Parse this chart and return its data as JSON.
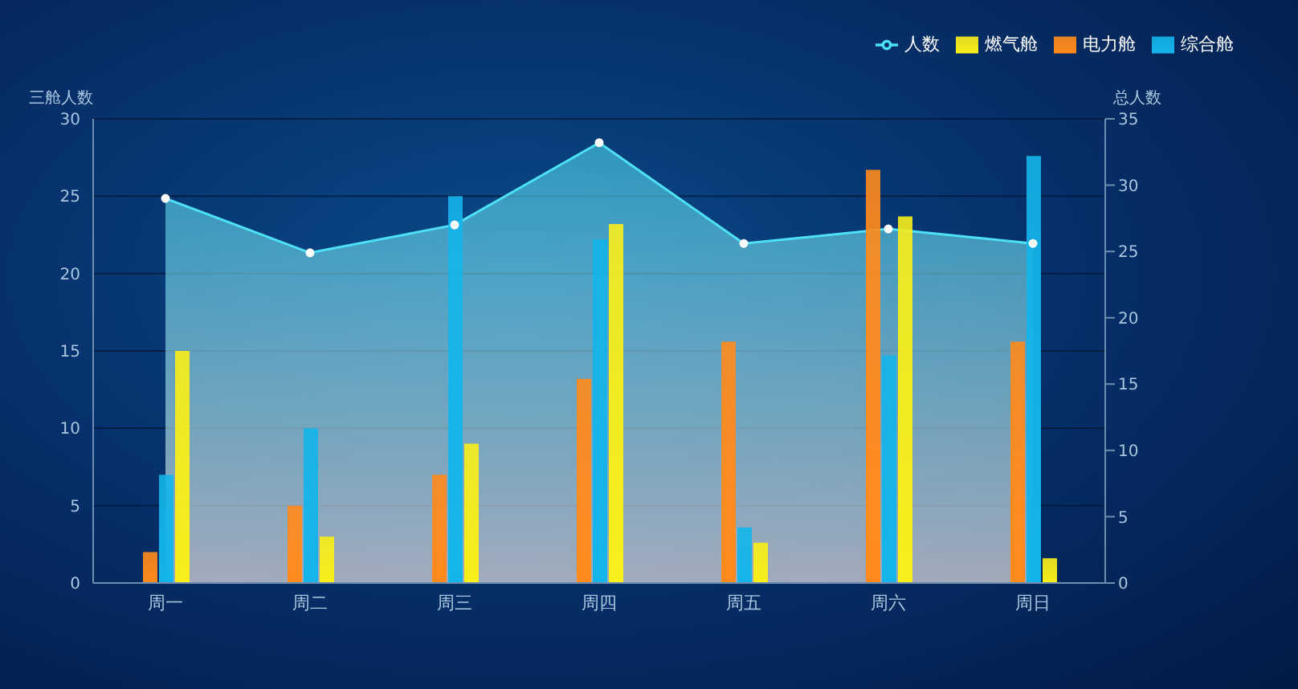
{
  "chart_data": {
    "type": "bar",
    "ylabel": "三舱人数",
    "y2label": "总人数",
    "categories": [
      "周一",
      "周二",
      "周三",
      "周四",
      "周五",
      "周六",
      "周日"
    ],
    "series": [
      {
        "name": "电力舱",
        "color": "#ff8a1c",
        "values": [
          2,
          5,
          7,
          13.2,
          15.6,
          26.7,
          15.6
        ]
      },
      {
        "name": "综合舱",
        "color": "#14b4ea",
        "values": [
          7,
          10,
          25,
          22.2,
          3.6,
          14.7,
          27.6
        ]
      },
      {
        "name": "燃气舱",
        "color": "#f8ee1a",
        "values": [
          15,
          3,
          9,
          23.2,
          2.6,
          23.7,
          1.6
        ]
      },
      {
        "name": "人数",
        "type": "area",
        "axis": "y2",
        "color": "#4ee0f5",
        "values": [
          29.0,
          24.9,
          27.0,
          33.2,
          25.6,
          26.7,
          25.6
        ]
      }
    ],
    "ylim": [
      0,
      30
    ],
    "yticks": [
      0,
      5,
      10,
      15,
      20,
      25,
      30
    ],
    "y2lim": [
      0,
      35
    ],
    "y2ticks": [
      0,
      5,
      10,
      15,
      20,
      25,
      30,
      35
    ],
    "grid": "y",
    "legend": "top right",
    "marker": "circle"
  }
}
